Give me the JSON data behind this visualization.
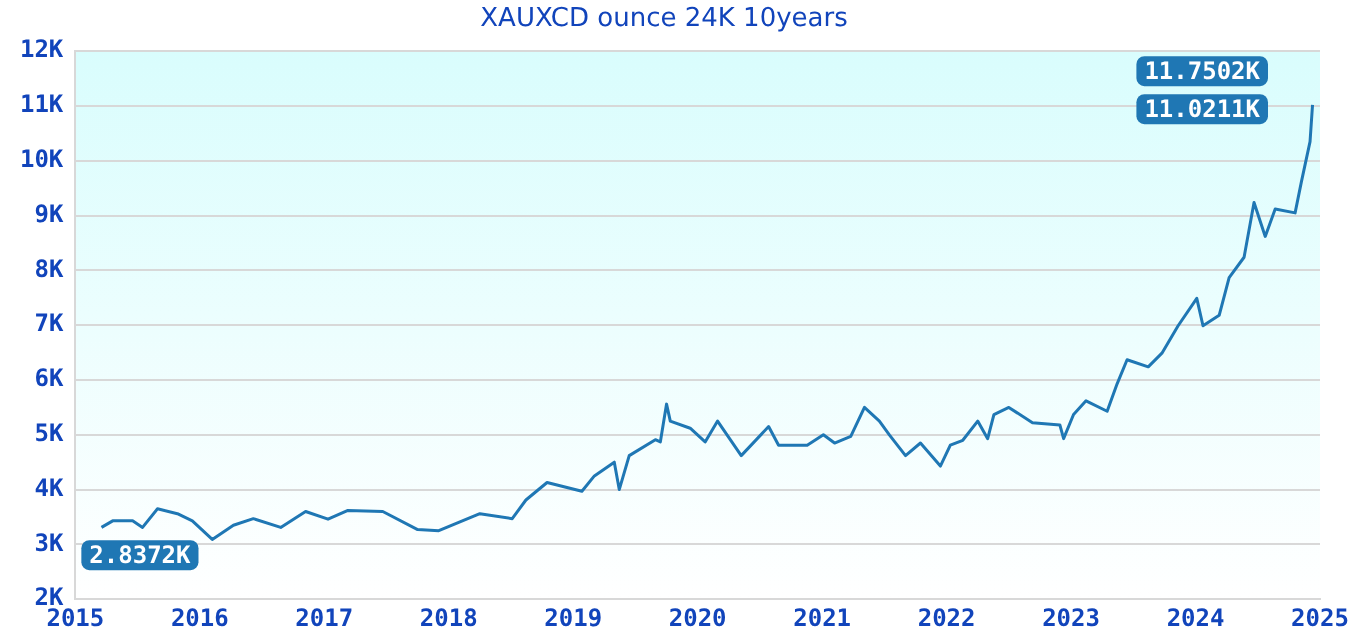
{
  "chart_data": {
    "type": "line",
    "title": "XAUXCD ounce 24K 10years",
    "x": [
      2015.21,
      2015.3,
      2015.46,
      2015.54,
      2015.66,
      2015.82,
      2015.94,
      2016.1,
      2016.27,
      2016.43,
      2016.65,
      2016.85,
      2017.03,
      2017.19,
      2017.47,
      2017.75,
      2017.92,
      2018.25,
      2018.51,
      2018.62,
      2018.79,
      2019.07,
      2019.17,
      2019.33,
      2019.37,
      2019.45,
      2019.66,
      2019.7,
      2019.75,
      2019.78,
      2019.94,
      2020.06,
      2020.16,
      2020.35,
      2020.57,
      2020.65,
      2020.88,
      2021.01,
      2021.1,
      2021.23,
      2021.34,
      2021.46,
      2021.54,
      2021.67,
      2021.79,
      2021.95,
      2022.03,
      2022.13,
      2022.25,
      2022.33,
      2022.38,
      2022.5,
      2022.69,
      2022.91,
      2022.94,
      2023.02,
      2023.12,
      2023.29,
      2023.37,
      2023.45,
      2023.62,
      2023.73,
      2023.86,
      2024.01,
      2024.06,
      2024.19,
      2024.27,
      2024.39,
      2024.47,
      2024.56,
      2024.64,
      2024.8,
      2024.85,
      2024.92,
      2024.94
    ],
    "series": [
      {
        "color": "#1f77b4",
        "values": [
          3.31,
          3.43,
          3.43,
          3.31,
          3.65,
          3.56,
          3.43,
          3.09,
          3.35,
          3.47,
          3.31,
          3.6,
          3.46,
          3.62,
          3.6,
          3.27,
          3.25,
          3.56,
          3.47,
          3.81,
          4.13,
          3.97,
          4.25,
          4.5,
          4.0,
          4.62,
          4.91,
          4.87,
          5.56,
          5.25,
          5.12,
          4.87,
          5.25,
          4.62,
          5.15,
          4.81,
          4.81,
          5.0,
          4.85,
          4.97,
          5.5,
          5.25,
          5.0,
          4.62,
          4.85,
          4.43,
          4.81,
          4.9,
          5.25,
          4.93,
          5.37,
          5.5,
          5.22,
          5.18,
          4.93,
          5.37,
          5.62,
          5.43,
          5.93,
          6.37,
          6.24,
          6.49,
          6.99,
          7.49,
          6.99,
          7.18,
          7.87,
          8.24,
          9.24,
          8.62,
          9.12,
          9.05,
          9.61,
          10.35,
          11.02
        ]
      }
    ],
    "xlim": [
      2015,
      2025
    ],
    "xticks": [
      2015,
      2016,
      2017,
      2018,
      2019,
      2020,
      2021,
      2022,
      2023,
      2024,
      2025
    ],
    "ylim": [
      2,
      12
    ],
    "yticks": [
      {
        "value": 2,
        "label": "2K"
      },
      {
        "value": 3,
        "label": "3K"
      },
      {
        "value": 4,
        "label": "4K"
      },
      {
        "value": 5,
        "label": "5K"
      },
      {
        "value": 6,
        "label": "6K"
      },
      {
        "value": 7,
        "label": "7K"
      },
      {
        "value": 8,
        "label": "8K"
      },
      {
        "value": 9,
        "label": "9K"
      },
      {
        "value": 10,
        "label": "10K"
      },
      {
        "value": 11,
        "label": "11K"
      },
      {
        "value": 12,
        "label": "12K"
      }
    ],
    "grid": "y",
    "legend": false,
    "marker": "none",
    "line_style": "solid",
    "annotations": [
      "2.8372K",
      "11.0211K",
      "11.7502K"
    ]
  }
}
